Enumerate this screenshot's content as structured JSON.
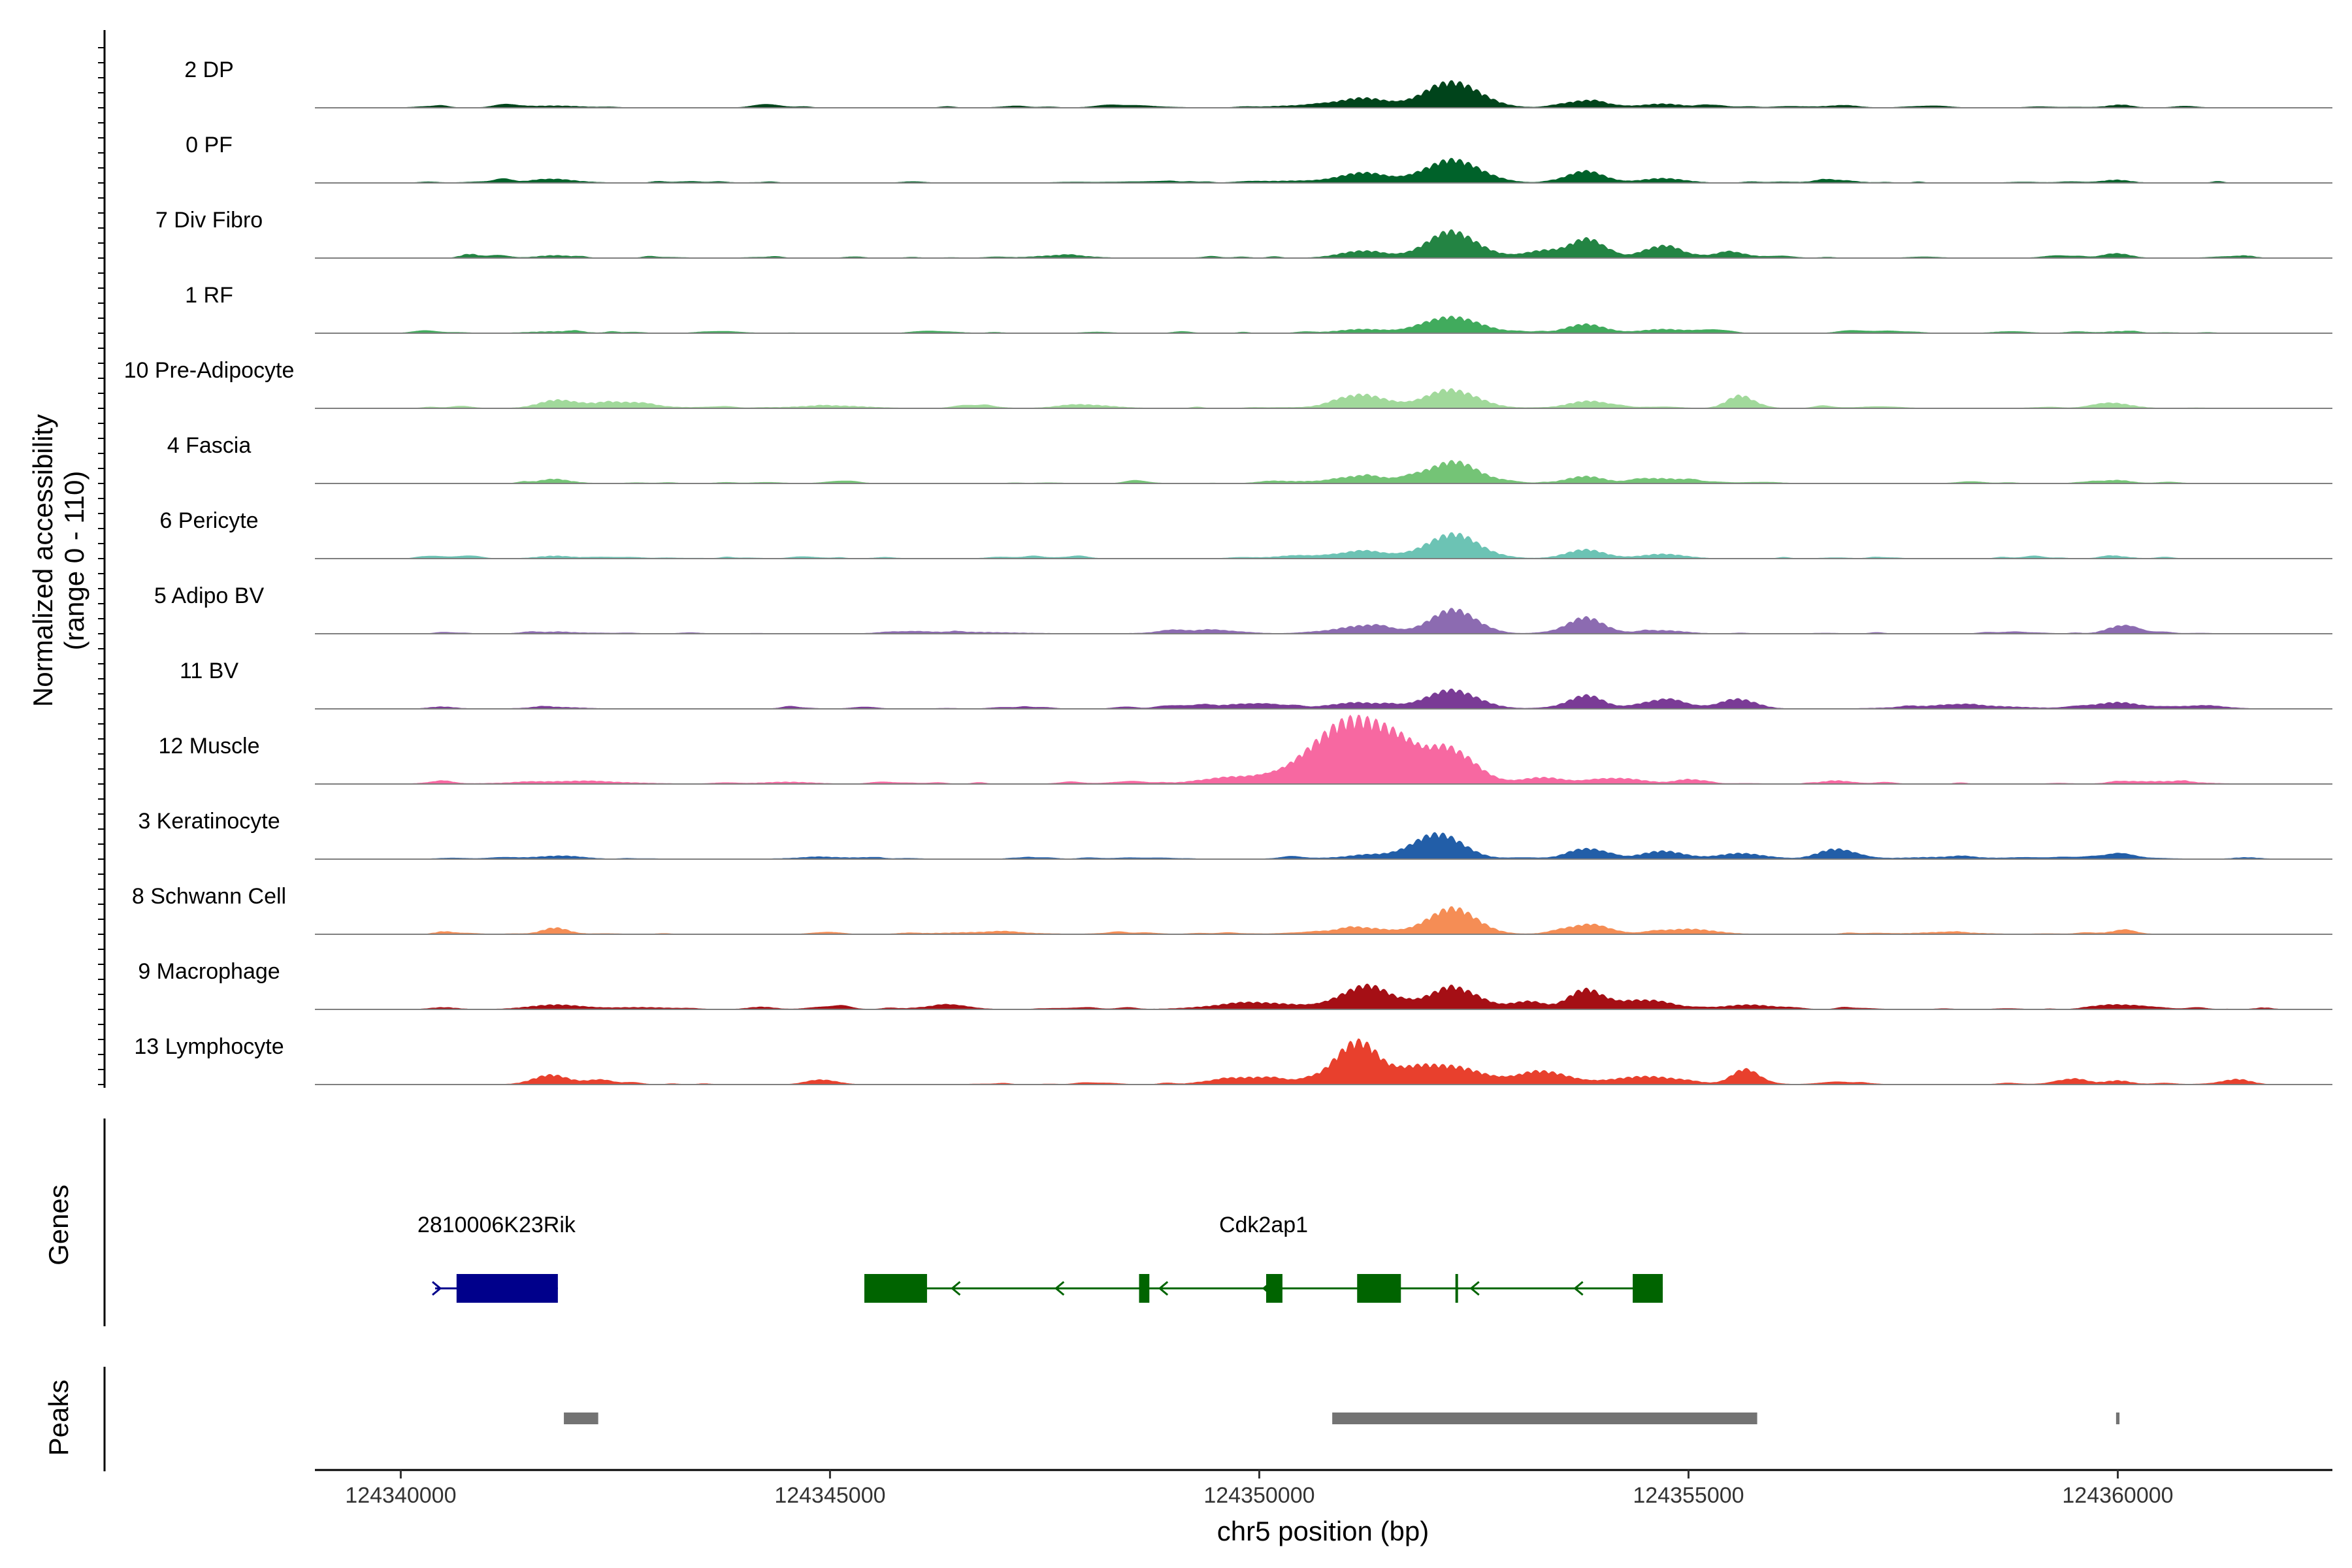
{
  "chart_data": {
    "type": "area",
    "title": "",
    "ylabel": "Normalized accessibility\n(range 0 - 110)",
    "xlabel": "chr5 position (bp)",
    "xlim": [
      124339000,
      124362500
    ],
    "ylim": [
      0,
      110
    ],
    "x_ticks": [
      124340000,
      124345000,
      124350000,
      124355000,
      124360000
    ],
    "x_tick_labels": [
      "124340000",
      "124345000",
      "124350000",
      "124355000",
      "124360000"
    ],
    "tracks": [
      {
        "name": "2 DP",
        "color": "#00441b",
        "peaks": [
          [
            124352250,
            80,
            320
          ],
          [
            124351200,
            30,
            280
          ],
          [
            124353800,
            22,
            220
          ],
          [
            124354700,
            12,
            250
          ],
          [
            124350400,
            6,
            300
          ],
          [
            124341800,
            6,
            300
          ],
          [
            124360000,
            6,
            150
          ],
          [
            124356700,
            4,
            250
          ]
        ]
      },
      {
        "name": "0 PF",
        "color": "#00622a",
        "peaks": [
          [
            124352250,
            70,
            320
          ],
          [
            124351200,
            30,
            280
          ],
          [
            124353800,
            32,
            220
          ],
          [
            124354700,
            14,
            250
          ],
          [
            124350400,
            6,
            300
          ],
          [
            124341800,
            8,
            300
          ],
          [
            124360000,
            8,
            150
          ],
          [
            124356700,
            6,
            250
          ]
        ]
      },
      {
        "name": "7 Div Fibro",
        "color": "#238443",
        "peaks": [
          [
            124352250,
            75,
            300
          ],
          [
            124351200,
            22,
            260
          ],
          [
            124353800,
            52,
            200
          ],
          [
            124354700,
            35,
            220
          ],
          [
            124353300,
            22,
            200
          ],
          [
            124355500,
            14,
            200
          ],
          [
            124347700,
            8,
            300
          ],
          [
            124340800,
            12,
            100
          ],
          [
            124341800,
            8,
            200
          ],
          [
            124360000,
            10,
            150
          ],
          [
            124361500,
            6,
            100
          ]
        ]
      },
      {
        "name": "1 RF",
        "color": "#41ab5d",
        "peaks": [
          [
            124352250,
            50,
            320
          ],
          [
            124351200,
            12,
            280
          ],
          [
            124353800,
            28,
            220
          ],
          [
            124354700,
            12,
            250
          ],
          [
            124341800,
            5,
            300
          ],
          [
            124360000,
            5,
            150
          ]
        ]
      },
      {
        "name": "10 Pre-Adipocyte",
        "color": "#a1d99b",
        "peaks": [
          [
            124352250,
            55,
            300
          ],
          [
            124351200,
            40,
            300
          ],
          [
            124353800,
            20,
            220
          ],
          [
            124355600,
            40,
            150
          ],
          [
            124342500,
            18,
            400
          ],
          [
            124341800,
            22,
            200
          ],
          [
            124345000,
            8,
            400
          ],
          [
            124360000,
            12,
            200
          ],
          [
            124348000,
            10,
            300
          ]
        ]
      },
      {
        "name": "4 Fascia",
        "color": "#74c476",
        "peaks": [
          [
            124352250,
            65,
            300
          ],
          [
            124351200,
            22,
            280
          ],
          [
            124353800,
            22,
            220
          ],
          [
            124354700,
            15,
            250
          ],
          [
            124341800,
            10,
            200
          ],
          [
            124360000,
            8,
            150
          ],
          [
            124350400,
            6,
            300
          ]
        ]
      },
      {
        "name": "6 Pericyte",
        "color": "#6cc3b4",
        "peaks": [
          [
            124352250,
            75,
            300
          ],
          [
            124351200,
            18,
            280
          ],
          [
            124353800,
            28,
            220
          ],
          [
            124354700,
            14,
            250
          ],
          [
            124341800,
            8,
            200
          ],
          [
            124360000,
            6,
            150
          ],
          [
            124350400,
            6,
            300
          ]
        ]
      },
      {
        "name": "5 Adipo BV",
        "color": "#8c6bb1",
        "peaks": [
          [
            124352250,
            70,
            260
          ],
          [
            124353800,
            50,
            200
          ],
          [
            124351200,
            24,
            300
          ],
          [
            124360000,
            20,
            150
          ],
          [
            124354700,
            10,
            250
          ],
          [
            124349300,
            8,
            400
          ],
          [
            124346500,
            5,
            600
          ],
          [
            124341800,
            5,
            300
          ]
        ]
      },
      {
        "name": "11 BV",
        "color": "#7a3b96",
        "peaks": [
          [
            124352250,
            55,
            300
          ],
          [
            124353800,
            40,
            200
          ],
          [
            124355600,
            28,
            200
          ],
          [
            124354700,
            22,
            250
          ],
          [
            124360000,
            20,
            250
          ],
          [
            124351200,
            18,
            350
          ],
          [
            124349800,
            10,
            400
          ],
          [
            124358200,
            10,
            600
          ],
          [
            124341800,
            5,
            300
          ],
          [
            124361000,
            6,
            300
          ],
          [
            124340500,
            5,
            150
          ]
        ]
      },
      {
        "name": "12 Muscle",
        "color": "#f768a1",
        "peaks": [
          [
            124351100,
            200,
            450
          ],
          [
            124352200,
            100,
            300
          ],
          [
            124351650,
            40,
            200
          ],
          [
            124349900,
            20,
            500
          ],
          [
            124353300,
            20,
            250
          ],
          [
            124354200,
            16,
            300
          ],
          [
            124355000,
            14,
            150
          ],
          [
            124356700,
            10,
            150
          ],
          [
            124342000,
            8,
            600
          ],
          [
            124344500,
            6,
            300
          ],
          [
            124360500,
            8,
            400
          ],
          [
            124340500,
            6,
            100
          ]
        ]
      },
      {
        "name": "3 Keratinocyte",
        "color": "#225ea8",
        "peaks": [
          [
            124352100,
            75,
            280
          ],
          [
            124353800,
            28,
            220
          ],
          [
            124354700,
            25,
            250
          ],
          [
            124356700,
            30,
            200
          ],
          [
            124355600,
            18,
            250
          ],
          [
            124351400,
            12,
            400
          ],
          [
            124341800,
            8,
            300
          ],
          [
            124345000,
            5,
            400
          ],
          [
            124358000,
            6,
            500
          ],
          [
            124360000,
            6,
            200
          ],
          [
            124361500,
            5,
            150
          ]
        ]
      },
      {
        "name": "8 Schwann Cell",
        "color": "#f58d55",
        "peaks": [
          [
            124352250,
            80,
            280
          ],
          [
            124353800,
            25,
            250
          ],
          [
            124351200,
            20,
            300
          ],
          [
            124355000,
            16,
            300
          ],
          [
            124341800,
            20,
            150
          ],
          [
            124340500,
            8,
            100
          ],
          [
            124346800,
            6,
            500
          ],
          [
            124358000,
            5,
            400
          ],
          [
            124360000,
            6,
            200
          ]
        ]
      },
      {
        "name": "9 Macrophage",
        "color": "#a50f15",
        "peaks": [
          [
            124351250,
            70,
            300
          ],
          [
            124352250,
            68,
            280
          ],
          [
            124353800,
            60,
            200
          ],
          [
            124350000,
            20,
            500
          ],
          [
            124353100,
            22,
            200
          ],
          [
            124354500,
            25,
            300
          ],
          [
            124355700,
            14,
            300
          ],
          [
            124341800,
            14,
            300
          ],
          [
            124346300,
            8,
            300
          ],
          [
            124342800,
            6,
            400
          ],
          [
            124360000,
            12,
            250
          ],
          [
            124344200,
            6,
            150
          ],
          [
            124361700,
            5,
            100
          ],
          [
            124340500,
            6,
            150
          ]
        ]
      },
      {
        "name": "13 Lymphocyte",
        "color": "#e8402d",
        "peaks": [
          [
            124351150,
            130,
            250
          ],
          [
            124352250,
            55,
            350
          ],
          [
            124353300,
            40,
            300
          ],
          [
            124355650,
            40,
            150
          ],
          [
            124354500,
            25,
            400
          ],
          [
            124351800,
            30,
            200
          ],
          [
            124341750,
            30,
            200
          ],
          [
            124349900,
            22,
            350
          ],
          [
            124342300,
            10,
            150
          ],
          [
            124344900,
            10,
            150
          ],
          [
            124359500,
            14,
            150
          ],
          [
            124360000,
            12,
            150
          ],
          [
            124361400,
            16,
            150
          ],
          [
            124350700,
            10,
            300
          ]
        ]
      }
    ],
    "genes_track_label": "Genes",
    "genes": [
      {
        "name": "2810006K23Rik",
        "color": "#00008b",
        "start": 124340400,
        "end": 124341830,
        "strand": "+",
        "exons": [
          [
            124340650,
            124341830
          ]
        ]
      },
      {
        "name": "Cdk2ap1",
        "color": "#006400",
        "start": 124345400,
        "end": 124354700,
        "strand": "-",
        "exons": [
          [
            124345400,
            124346130
          ],
          [
            124348600,
            124348720
          ],
          [
            124350080,
            124350270
          ],
          [
            124351140,
            124351650
          ],
          [
            124354350,
            124354700
          ]
        ],
        "marks": [
          124352300
        ]
      }
    ],
    "peaks_track_label": "Peaks",
    "peak_regions": [
      [
        124341900,
        124342300
      ],
      [
        124350850,
        124355800
      ],
      [
        124359980,
        124360020
      ]
    ],
    "peaks_color": "#737373"
  }
}
